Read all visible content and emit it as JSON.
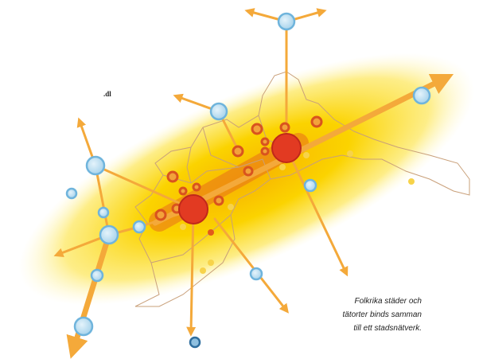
{
  "fragment": ".dl",
  "caption": {
    "lines": [
      "Folkrika städer och",
      "tätorter binds samman",
      "till ett stadsnätverk."
    ]
  }
}
